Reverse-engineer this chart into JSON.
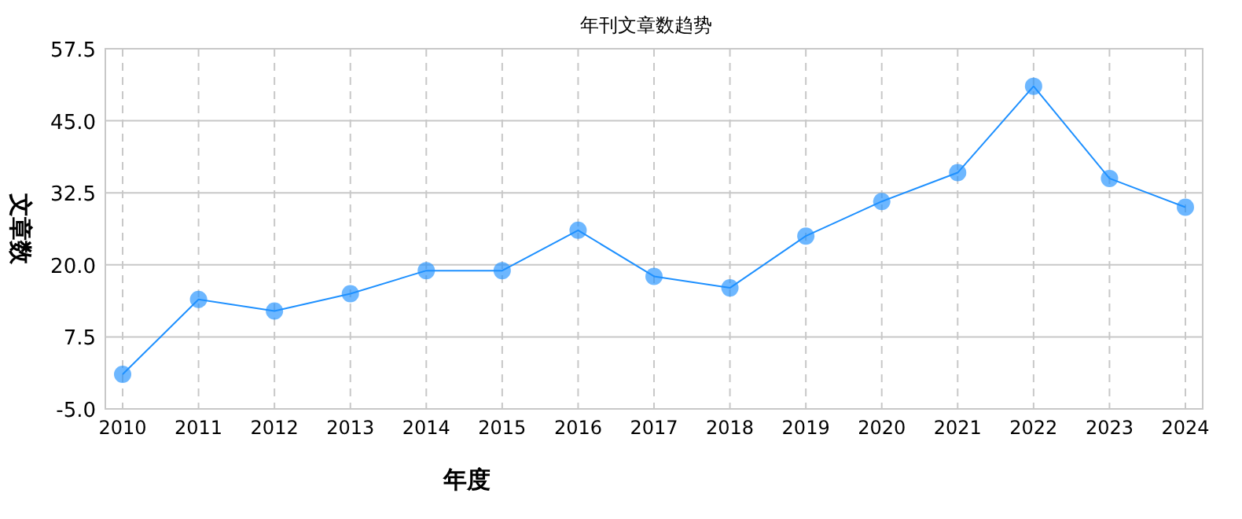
{
  "chart_data": {
    "type": "line",
    "title": "年刊文章数趋势",
    "xlabel": "年度",
    "ylabel": "文章数",
    "categories": [
      "2010",
      "2011",
      "2012",
      "2013",
      "2014",
      "2015",
      "2016",
      "2017",
      "2018",
      "2019",
      "2020",
      "2021",
      "2022",
      "2023",
      "2024"
    ],
    "series": [
      {
        "color": "#1e90ff",
        "values": [
          1,
          14,
          12,
          15,
          19,
          19,
          26,
          18,
          16,
          25,
          31,
          36,
          51,
          35,
          30
        ]
      }
    ],
    "ylim": [
      -5,
      57.5
    ],
    "yticks": [
      {
        "value": -5,
        "label": "-5.0"
      },
      {
        "value": 7.5,
        "label": "7.5"
      },
      {
        "value": 20,
        "label": "20.0"
      },
      {
        "value": 32.5,
        "label": "32.5"
      },
      {
        "value": 45,
        "label": "45.0"
      },
      {
        "value": 57.5,
        "label": "57.5"
      }
    ],
    "grid": true,
    "marker": "circle",
    "line_style": "solid"
  }
}
